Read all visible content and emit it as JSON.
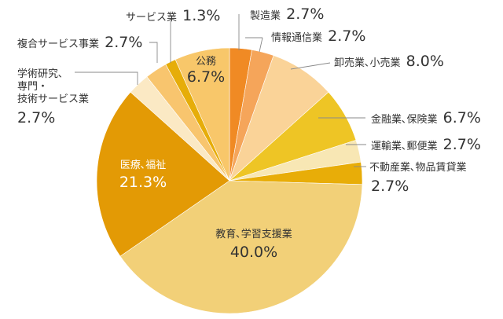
{
  "chart_data": {
    "type": "pie",
    "title": "",
    "slices": [
      {
        "label": "製造業",
        "value": 2.7,
        "display": "2.7%",
        "color": "#f08a24"
      },
      {
        "label": "情報通信業",
        "value": 2.7,
        "display": "2.7%",
        "color": "#f5a55a"
      },
      {
        "label": "卸売業、小売業",
        "value": 8.0,
        "display": "8.0%",
        "color": "#fad398"
      },
      {
        "label": "金融業、保険業",
        "value": 6.7,
        "display": "6.7%",
        "color": "#eec525"
      },
      {
        "label": "運輸業、郵便業",
        "value": 2.7,
        "display": "2.7%",
        "color": "#f8e7b4"
      },
      {
        "label": "不動産業、物品賃貸業",
        "value": 2.7,
        "display": "2.7%",
        "color": "#e8ad08"
      },
      {
        "label": "教育、学習支援業",
        "value": 40.0,
        "display": "40.0%",
        "color": "#f2d078"
      },
      {
        "label": "医療、福祉",
        "value": 21.3,
        "display": "21.3%",
        "color": "#e39a05"
      },
      {
        "label": "学術研究、専門・技術サービス業",
        "value": 2.7,
        "display": "2.7%",
        "color": "#fbe9c4"
      },
      {
        "label": "複合サービス事業",
        "value": 2.7,
        "display": "2.7%",
        "color": "#f8c56e"
      },
      {
        "label": "サービス業",
        "value": 1.3,
        "display": "1.3%",
        "color": "#e6ad09"
      },
      {
        "label": "公務",
        "value": 6.7,
        "display": "6.7%",
        "color": "#f8c76a"
      }
    ]
  },
  "labels": {
    "seizo": {
      "name": "製造業",
      "pct": "2.7%"
    },
    "joho": {
      "name": "情報通信業",
      "pct": "2.7%"
    },
    "oroshi": {
      "name": "卸売業､小売業",
      "pct": "8.0%"
    },
    "kinyu": {
      "name": "金融業､保険業",
      "pct": "6.7%"
    },
    "unyu": {
      "name": "運輸業､郵便業",
      "pct": "2.7%"
    },
    "fudosan": {
      "name": "不動産業､物品賃貸業",
      "pct": "2.7%"
    },
    "kyoiku": {
      "name": "教育､学習支援業",
      "pct": "40.0%"
    },
    "iryo": {
      "name": "医療､福祉",
      "pct": "21.3%"
    },
    "gakujutsu": {
      "line1": "学術研究､",
      "line2": "専門・",
      "line3": "技術サービス業",
      "pct": "2.7%"
    },
    "fukugo": {
      "name": "複合サービス事業",
      "pct": "2.7%"
    },
    "service": {
      "name": "サービス業",
      "pct": "1.3%"
    },
    "komu": {
      "name": "公務",
      "pct": "6.7%"
    }
  }
}
